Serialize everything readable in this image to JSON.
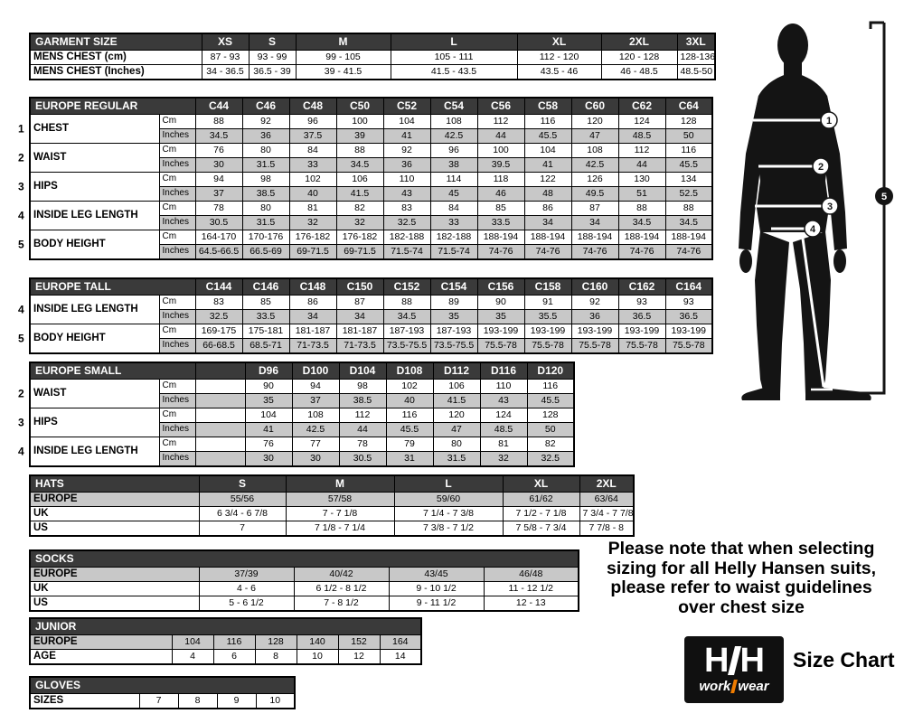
{
  "colors": {
    "table_header_bg": "#3a3a3a",
    "shaded_row_bg": "#c8c8c8",
    "logo_bg": "#101010",
    "logo_accent_orange": "#ef7c00"
  },
  "units": {
    "cm": "Cm",
    "inches": "Inches"
  },
  "tables": {
    "garment_size": {
      "type": "simple",
      "title": "GARMENT SIZE",
      "cols": [
        "XS",
        "S",
        "M",
        "L",
        "XL",
        "2XL",
        "3XL"
      ],
      "rows": [
        {
          "label": "MENS CHEST (cm)",
          "cells": [
            "87 - 93",
            "93 - 99",
            "99 - 105",
            "105 - 111",
            "112 - 120",
            "120 - 128",
            "128-136"
          ]
        },
        {
          "label": "MENS CHEST (Inches)",
          "cells": [
            "34 - 36.5",
            "36.5 - 39",
            "39 - 41.5",
            "41.5 - 43.5",
            "43.5 - 46",
            "46 - 48.5",
            "48.5-50"
          ]
        }
      ]
    },
    "europe_regular": {
      "type": "measure",
      "title": "EUROPE REGULAR",
      "cols": [
        "C44",
        "C46",
        "C48",
        "C50",
        "C52",
        "C54",
        "C56",
        "C58",
        "C60",
        "C62",
        "C64"
      ],
      "groups": [
        {
          "num": "1",
          "label": "CHEST",
          "cm": [
            "88",
            "92",
            "96",
            "100",
            "104",
            "108",
            "112",
            "116",
            "120",
            "124",
            "128"
          ],
          "inches": [
            "34.5",
            "36",
            "37.5",
            "39",
            "41",
            "42.5",
            "44",
            "45.5",
            "47",
            "48.5",
            "50"
          ]
        },
        {
          "num": "2",
          "label": "WAIST",
          "cm": [
            "76",
            "80",
            "84",
            "88",
            "92",
            "96",
            "100",
            "104",
            "108",
            "112",
            "116"
          ],
          "inches": [
            "30",
            "31.5",
            "33",
            "34.5",
            "36",
            "38",
            "39.5",
            "41",
            "42.5",
            "44",
            "45.5"
          ]
        },
        {
          "num": "3",
          "label": "HIPS",
          "cm": [
            "94",
            "98",
            "102",
            "106",
            "110",
            "114",
            "118",
            "122",
            "126",
            "130",
            "134"
          ],
          "inches": [
            "37",
            "38.5",
            "40",
            "41.5",
            "43",
            "45",
            "46",
            "48",
            "49.5",
            "51",
            "52.5"
          ]
        },
        {
          "num": "4",
          "label": "INSIDE LEG LENGTH",
          "cm": [
            "78",
            "80",
            "81",
            "82",
            "83",
            "84",
            "85",
            "86",
            "87",
            "88",
            "88"
          ],
          "inches": [
            "30.5",
            "31.5",
            "32",
            "32",
            "32.5",
            "33",
            "33.5",
            "34",
            "34",
            "34.5",
            "34.5"
          ]
        },
        {
          "num": "5",
          "label": "BODY HEIGHT",
          "cm": [
            "164-170",
            "170-176",
            "176-182",
            "176-182",
            "182-188",
            "182-188",
            "188-194",
            "188-194",
            "188-194",
            "188-194",
            "188-194"
          ],
          "inches": [
            "64.5-66.5",
            "66.5-69",
            "69-71.5",
            "69-71.5",
            "71.5-74",
            "71.5-74",
            "74-76",
            "74-76",
            "74-76",
            "74-76",
            "74-76"
          ]
        }
      ]
    },
    "europe_tall": {
      "type": "measure",
      "title": "EUROPE TALL",
      "cols": [
        "C144",
        "C146",
        "C148",
        "C150",
        "C152",
        "C154",
        "C156",
        "C158",
        "C160",
        "C162",
        "C164"
      ],
      "groups": [
        {
          "num": "4",
          "label": "INSIDE LEG LENGTH",
          "cm": [
            "83",
            "85",
            "86",
            "87",
            "88",
            "89",
            "90",
            "91",
            "92",
            "93",
            "93"
          ],
          "inches": [
            "32.5",
            "33.5",
            "34",
            "34",
            "34.5",
            "35",
            "35",
            "35.5",
            "36",
            "36.5",
            "36.5"
          ]
        },
        {
          "num": "5",
          "label": "BODY HEIGHT",
          "cm": [
            "169-175",
            "175-181",
            "181-187",
            "181-187",
            "187-193",
            "187-193",
            "193-199",
            "193-199",
            "193-199",
            "193-199",
            "193-199"
          ],
          "inches": [
            "66-68.5",
            "68.5-71",
            "71-73.5",
            "71-73.5",
            "73.5-75.5",
            "73.5-75.5",
            "75.5-78",
            "75.5-78",
            "75.5-78",
            "75.5-78",
            "75.5-78"
          ]
        }
      ]
    },
    "europe_small": {
      "type": "measure",
      "title": "EUROPE SMALL",
      "cols": [
        "",
        "D96",
        "D100",
        "D104",
        "D108",
        "D112",
        "D116",
        "D120"
      ],
      "groups": [
        {
          "num": "2",
          "label": "WAIST",
          "cm": [
            "",
            "90",
            "94",
            "98",
            "102",
            "106",
            "110",
            "116"
          ],
          "inches": [
            "",
            "35",
            "37",
            "38.5",
            "40",
            "41.5",
            "43",
            "45.5"
          ]
        },
        {
          "num": "3",
          "label": "HIPS",
          "cm": [
            "",
            "104",
            "108",
            "112",
            "116",
            "120",
            "124",
            "128"
          ],
          "inches": [
            "",
            "41",
            "42.5",
            "44",
            "45.5",
            "47",
            "48.5",
            "50"
          ]
        },
        {
          "num": "4",
          "label": "INSIDE LEG LENGTH",
          "cm": [
            "",
            "76",
            "77",
            "78",
            "79",
            "80",
            "81",
            "82"
          ],
          "inches": [
            "",
            "30",
            "30",
            "30.5",
            "31",
            "31.5",
            "32",
            "32.5"
          ]
        }
      ]
    },
    "hats": {
      "type": "simple",
      "title": "HATS",
      "cols": [
        "S",
        "M",
        "L",
        "XL",
        "2XL"
      ],
      "rows": [
        {
          "label": "EUROPE",
          "shade": "grey",
          "cells": [
            "55/56",
            "57/58",
            "59/60",
            "61/62",
            "63/64"
          ]
        },
        {
          "label": "UK",
          "cells": [
            "6 3/4 - 6 7/8",
            "7 - 7 1/8",
            "7 1/4 - 7 3/8",
            "7 1/2 - 7 1/8",
            "7 3/4 - 7 7/8"
          ]
        },
        {
          "label": "US",
          "cells": [
            "7",
            "7 1/8 - 7 1/4",
            "7 3/8 - 7 1/2",
            "7 5/8 - 7 3/4",
            "7 7/8 - 8"
          ]
        }
      ]
    },
    "socks": {
      "type": "simple",
      "title": "SOCKS",
      "cols": null,
      "rows": [
        {
          "label": "EUROPE",
          "shade": "grey",
          "cells": [
            "37/39",
            "40/42",
            "43/45",
            "46/48"
          ]
        },
        {
          "label": "UK",
          "cells": [
            "4 - 6",
            "6 1/2 - 8 1/2",
            "9 - 10 1/2",
            "11 - 12 1/2"
          ]
        },
        {
          "label": "US",
          "cells": [
            "5 - 6 1/2",
            "7 - 8 1/2",
            "9 - 11 1/2",
            "12 - 13"
          ]
        }
      ]
    },
    "junior": {
      "type": "simple",
      "title": "JUNIOR",
      "cols": null,
      "rows": [
        {
          "label": "EUROPE",
          "shade": "grey",
          "cells": [
            "104",
            "116",
            "128",
            "140",
            "152",
            "164"
          ]
        },
        {
          "label": "AGE",
          "cells": [
            "4",
            "6",
            "8",
            "10",
            "12",
            "14"
          ]
        }
      ]
    },
    "gloves": {
      "type": "simple",
      "title": "GLOVES",
      "cols": null,
      "rows": [
        {
          "label": "SIZES",
          "cells": [
            "7",
            "8",
            "9",
            "10"
          ]
        }
      ]
    }
  },
  "note": {
    "lines": [
      "Please note that when selecting",
      "sizing for all Helly Hansen suits,",
      "please refer to waist guidelines",
      "over chest size"
    ]
  },
  "logo": {
    "mark_left": "H",
    "mark_right": "H",
    "word_left": "work",
    "word_right": "wear",
    "caption": "Size Chart"
  },
  "figure": {
    "callouts": [
      "1",
      "2",
      "3",
      "4",
      "5"
    ]
  }
}
